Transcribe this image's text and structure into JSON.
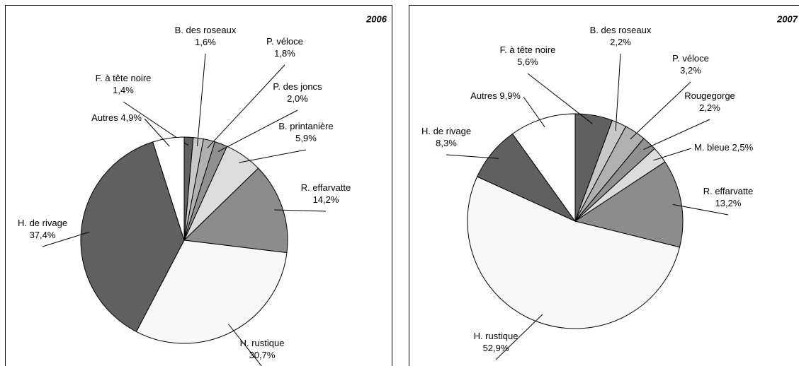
{
  "chart_data": [
    {
      "type": "pie",
      "title": "2006",
      "categories": [
        "F. à tête noire",
        "B. des roseaux",
        "P. véloce",
        "P. des joncs",
        "B. printanière",
        "R. effarvatte",
        "H. rustique",
        "H. de rivage",
        "Autres"
      ],
      "values": [
        1.4,
        1.6,
        1.8,
        2.0,
        5.9,
        14.2,
        30.7,
        37.4,
        4.9
      ],
      "value_labels": [
        "1,4%",
        "1,6%",
        "1,8%",
        "2,0%",
        "5,9%",
        "14,2%",
        "30,7%",
        "37,4%",
        "4,9%"
      ],
      "colors": [
        "#606060",
        "#c8c8c8",
        "#b0b0b0",
        "#909090",
        "#dcdcdc",
        "#8c8c8c",
        "#f8f8f8",
        "#606060",
        "#ffffff"
      ]
    },
    {
      "type": "pie",
      "title": "2007",
      "categories": [
        "F. à tête noire",
        "B. des roseaux",
        "P. véloce",
        "Rougegorge",
        "M. bleue",
        "R. effarvatte",
        "H. rustique",
        "H. de rivage",
        "Autres"
      ],
      "values": [
        5.6,
        2.2,
        3.2,
        2.2,
        2.5,
        13.2,
        52.9,
        8.3,
        9.9
      ],
      "value_labels": [
        "5,6%",
        "2,2%",
        "3,2%",
        "2,2%",
        "2,5%",
        "13,2%",
        "52,9%",
        "8,3%",
        "9,9%"
      ],
      "colors": [
        "#606060",
        "#c8c8c8",
        "#b0b0b0",
        "#909090",
        "#dcdcdc",
        "#8c8c8c",
        "#f8f8f8",
        "#606060",
        "#ffffff"
      ]
    }
  ]
}
